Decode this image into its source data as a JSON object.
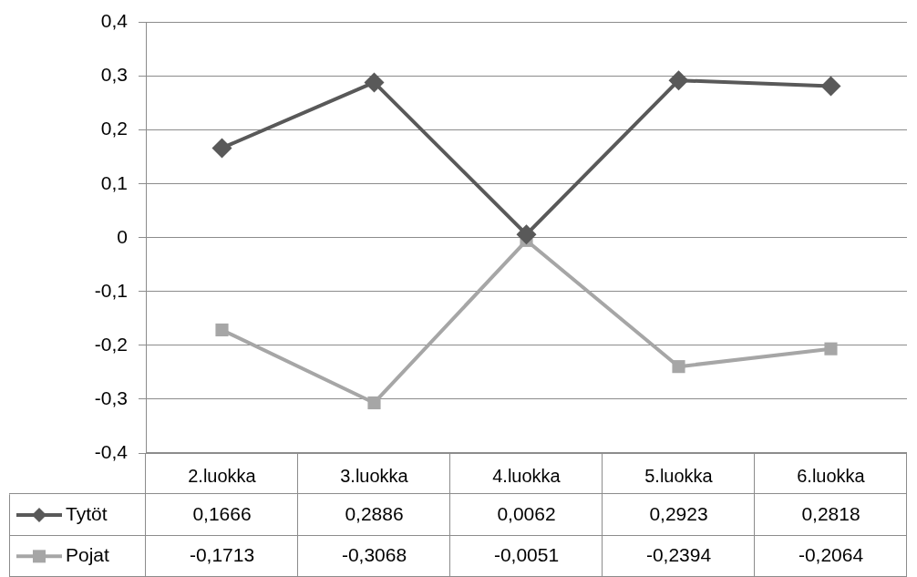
{
  "chart_data": {
    "type": "line",
    "categories": [
      "2.luokka",
      "3.luokka",
      "4.luokka",
      "5.luokka",
      "6.luokka"
    ],
    "series": [
      {
        "name": "Tytöt",
        "color": "#595959",
        "marker": "diamond",
        "values": [
          0.1666,
          0.2886,
          0.0062,
          0.2923,
          0.2818
        ],
        "value_labels": [
          "0,1666",
          "0,2886",
          "0,0062",
          "0,2923",
          "0,2818"
        ]
      },
      {
        "name": "Pojat",
        "color": "#a6a6a6",
        "marker": "square",
        "values": [
          -0.1713,
          -0.3068,
          -0.0051,
          -0.2394,
          -0.2064
        ],
        "value_labels": [
          "-0,1713",
          "-0,3068",
          "-0,0051",
          "-0,2394",
          "-0,2064"
        ]
      }
    ],
    "ylim": [
      -0.4,
      0.4
    ],
    "yticks": [
      {
        "value": -0.4,
        "label": "-0,4"
      },
      {
        "value": -0.3,
        "label": "-0,3"
      },
      {
        "value": -0.2,
        "label": "-0,2"
      },
      {
        "value": -0.1,
        "label": "-0,1"
      },
      {
        "value": 0,
        "label": "0"
      },
      {
        "value": 0.1,
        "label": "0,1"
      },
      {
        "value": 0.2,
        "label": "0,2"
      },
      {
        "value": 0.3,
        "label": "0,3"
      },
      {
        "value": 0.4,
        "label": "0,4"
      }
    ],
    "grid": "y",
    "legend": "bottom"
  }
}
